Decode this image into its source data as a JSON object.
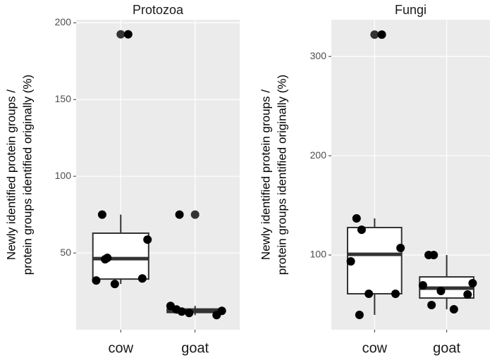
{
  "chart_data": [
    {
      "type": "box",
      "title": "Protozoa",
      "ylabel": [
        "Newly identified protein groups /",
        "protein groups identified originally (%)"
      ],
      "categories": [
        "cow",
        "goat"
      ],
      "boxes": [
        {
          "whislo": 29.8,
          "q1": 33,
          "med": 46.3,
          "q3": 62.9,
          "whishi": 75
        },
        {
          "whislo": 9.5,
          "q1": 11.2,
          "med": 12.3,
          "q3": 13.5,
          "whishi": 15.5
        }
      ],
      "points": [
        [
          75,
          46.8,
          58.7,
          32.1,
          29.8,
          33.4,
          45.9,
          192.5
        ],
        [
          13.2,
          11.8,
          12.3,
          15.5,
          10.9,
          9.5,
          75
        ]
      ],
      "outliers": [
        [
          192.5
        ],
        [
          75
        ]
      ],
      "ylim": [
        0,
        202
      ],
      "yticks": [
        50,
        100,
        150,
        200
      ],
      "grid": true,
      "panel_color": "#ebebeb",
      "box_fill": "#ffffff",
      "box_stroke": "#333333",
      "point_color": "#000000",
      "outlier_color": "#333333"
    },
    {
      "type": "box",
      "title": "Fungi",
      "ylabel": [
        "Newly identified protein groups /",
        "protein groups identified originally (%)"
      ],
      "categories": [
        "cow",
        "goat"
      ],
      "boxes": [
        {
          "whislo": 39.7,
          "q1": 61,
          "med": 100.7,
          "q3": 127.7,
          "whishi": 136.9
        },
        {
          "whislo": 45.4,
          "q1": 56.7,
          "med": 66.7,
          "q3": 78,
          "whishi": 100
        }
      ],
      "points": [
        [
          136.9,
          125.5,
          107.1,
          93.6,
          61,
          61,
          39.7,
          322
        ],
        [
          100,
          100,
          71.6,
          69.5,
          63.8,
          60.3,
          49.6,
          45.4
        ]
      ],
      "outliers": [
        [
          322
        ],
        []
      ],
      "ylim": [
        24.8,
        337
      ],
      "yticks": [
        100,
        200,
        300
      ],
      "grid": true,
      "panel_color": "#ebebeb",
      "box_fill": "#ffffff",
      "box_stroke": "#333333",
      "point_color": "#000000",
      "outlier_color": "#333333"
    }
  ]
}
